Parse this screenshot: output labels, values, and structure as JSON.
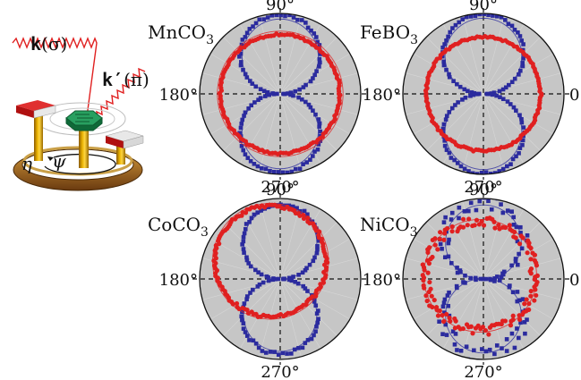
{
  "illustration": {
    "k_in": "k",
    "k_in_pol": "(σ)",
    "k_out": "k′",
    "k_out_pol": "(π)",
    "eta": "η",
    "psi": "ψ"
  },
  "chart_data": [
    {
      "type": "polar",
      "title": "MnCO3",
      "title_base": "MnCO",
      "title_sub": "3",
      "angle_labels": [
        "90°",
        "180°",
        "270°"
      ],
      "series": [
        {
          "marker": "square",
          "color": "#2b2b9e",
          "shape": "figure-eight",
          "lobe_radius": 0.98,
          "min_radius": 0.04,
          "noise": 0.015,
          "fit_radius": 0.93
        },
        {
          "marker": "circle",
          "color": "#e02020",
          "shape": "circle",
          "radius": 0.74,
          "offset_x": 0.0,
          "offset_y": 0.0,
          "noise": 0.012,
          "fit_radius": 0.78
        }
      ]
    },
    {
      "type": "polar",
      "title": "FeBO3",
      "title_base": "FeBO",
      "title_sub": "3",
      "angle_labels": [
        "90°",
        "180°",
        "0",
        "270°"
      ],
      "series": [
        {
          "marker": "square",
          "color": "#2b2b9e",
          "shape": "figure-eight",
          "lobe_radius": 0.99,
          "min_radius": 0.03,
          "noise": 0.015,
          "fit_radius": 0.94
        },
        {
          "marker": "circle",
          "color": "#e02020",
          "shape": "circle",
          "radius": 0.71,
          "offset_x": 0.0,
          "offset_y": 0.0,
          "noise": 0.012,
          "fit_radius": 0.72
        }
      ]
    },
    {
      "type": "polar",
      "title": "CoCO3",
      "title_base": "CoCO",
      "title_sub": "3",
      "angle_labels": [
        "90°",
        "180°",
        "270°"
      ],
      "series": [
        {
          "marker": "square",
          "color": "#2b2b9e",
          "shape": "figure-eight",
          "lobe_radius": 0.93,
          "min_radius": 0.02,
          "noise": 0.02,
          "fit_radius": 0.9
        },
        {
          "marker": "circle",
          "color": "#e02020",
          "shape": "circle",
          "radius": 0.69,
          "offset_x": -0.12,
          "offset_y": 0.22,
          "noise": 0.02,
          "fit_radius": 0.72
        }
      ]
    },
    {
      "type": "polar",
      "title": "NiCO3",
      "title_base": "NiCO",
      "title_sub": "3",
      "angle_labels": [
        "90°",
        "180°",
        "0",
        "270°"
      ],
      "series": [
        {
          "marker": "square",
          "color": "#2b2b9e",
          "shape": "figure-eight",
          "lobe_radius": 0.95,
          "min_radius": 0.05,
          "noise": 0.09,
          "fit_radius": 0.92
        },
        {
          "marker": "circle",
          "color": "#e02020",
          "shape": "circle",
          "radius": 0.68,
          "offset_x": -0.04,
          "offset_y": 0.04,
          "noise": 0.06,
          "fit_radius": 0.7
        }
      ]
    }
  ]
}
